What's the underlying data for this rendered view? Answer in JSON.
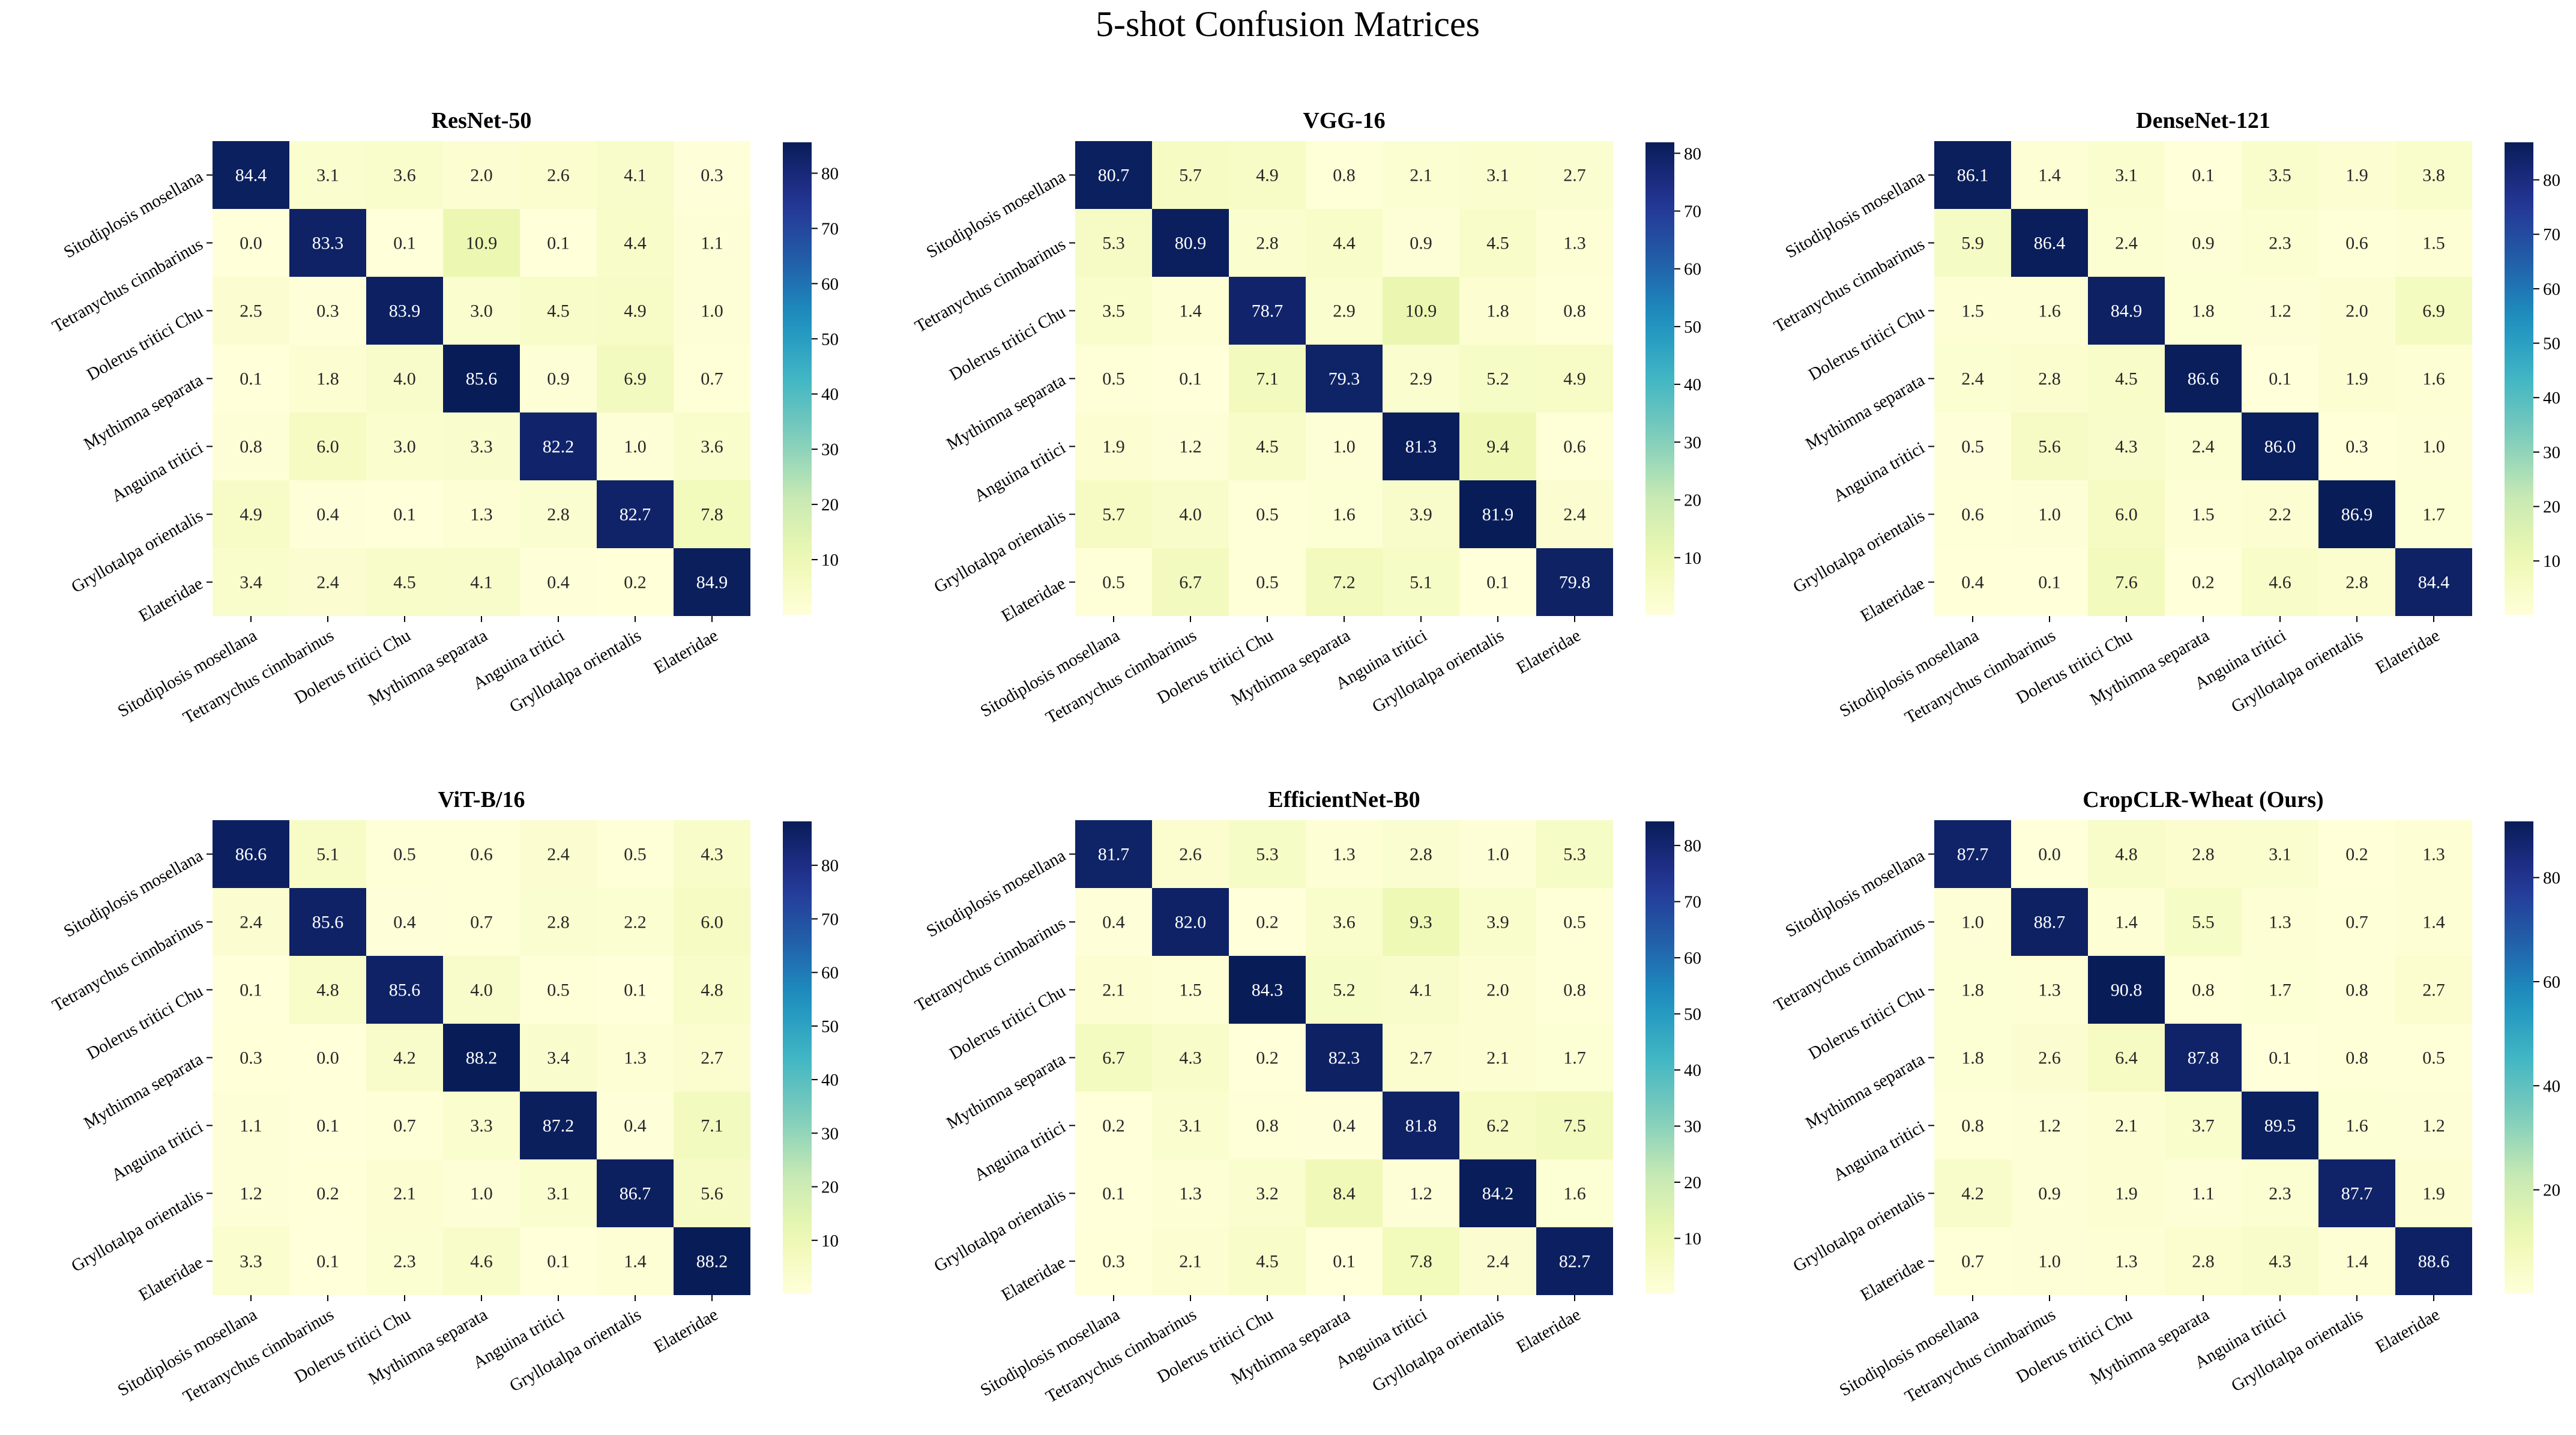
{
  "title": "5-shot Confusion Matrices",
  "chart_data": {
    "type": "heatmap",
    "layout": "2x3 grid",
    "colormap": "YlGnBu",
    "labels": [
      "Sitodiplosis mosellana",
      "Tetranychus cinnbarinus",
      "Dolerus tritici Chu",
      "Mythimna separata",
      "Anguina tritici",
      "Gryllotalpa orientalis",
      "Elateridae"
    ],
    "panels": [
      {
        "title": "ResNet-50",
        "vmin": 0.0,
        "vmax": 85.6,
        "colorbar_ticks": [
          10,
          20,
          30,
          40,
          50,
          60,
          70,
          80
        ],
        "matrix": [
          [
            84.4,
            3.1,
            3.6,
            2.0,
            2.6,
            4.1,
            0.3
          ],
          [
            0.0,
            83.3,
            0.1,
            10.9,
            0.1,
            4.4,
            1.1
          ],
          [
            2.5,
            0.3,
            83.9,
            3.0,
            4.5,
            4.9,
            1.0
          ],
          [
            0.1,
            1.8,
            4.0,
            85.6,
            0.9,
            6.9,
            0.7
          ],
          [
            0.8,
            6.0,
            3.0,
            3.3,
            82.2,
            1.0,
            3.6
          ],
          [
            4.9,
            0.4,
            0.1,
            1.3,
            2.8,
            82.7,
            7.8
          ],
          [
            3.4,
            2.4,
            4.5,
            4.1,
            0.4,
            0.2,
            84.9
          ]
        ]
      },
      {
        "title": "VGG-16",
        "vmin": 0.1,
        "vmax": 81.9,
        "colorbar_ticks": [
          10,
          20,
          30,
          40,
          50,
          60,
          70,
          80
        ],
        "matrix": [
          [
            80.7,
            5.7,
            4.9,
            0.8,
            2.1,
            3.1,
            2.7
          ],
          [
            5.3,
            80.9,
            2.8,
            4.4,
            0.9,
            4.5,
            1.3
          ],
          [
            3.5,
            1.4,
            78.7,
            2.9,
            10.9,
            1.8,
            0.8
          ],
          [
            0.5,
            0.1,
            7.1,
            79.3,
            2.9,
            5.2,
            4.9
          ],
          [
            1.9,
            1.2,
            4.5,
            1.0,
            81.3,
            9.4,
            0.6
          ],
          [
            5.7,
            4.0,
            0.5,
            1.6,
            3.9,
            81.9,
            2.4
          ],
          [
            0.5,
            6.7,
            0.5,
            7.2,
            5.1,
            0.1,
            79.8
          ]
        ]
      },
      {
        "title": "DenseNet-121",
        "vmin": 0.1,
        "vmax": 86.9,
        "colorbar_ticks": [
          10,
          20,
          30,
          40,
          50,
          60,
          70,
          80
        ],
        "matrix": [
          [
            86.1,
            1.4,
            3.1,
            0.1,
            3.5,
            1.9,
            3.8
          ],
          [
            5.9,
            86.4,
            2.4,
            0.9,
            2.3,
            0.6,
            1.5
          ],
          [
            1.5,
            1.6,
            84.9,
            1.8,
            1.2,
            2.0,
            6.9
          ],
          [
            2.4,
            2.8,
            4.5,
            86.6,
            0.1,
            1.9,
            1.6
          ],
          [
            0.5,
            5.6,
            4.3,
            2.4,
            86.0,
            0.3,
            1.0
          ],
          [
            0.6,
            1.0,
            6.0,
            1.5,
            2.2,
            86.9,
            1.7
          ],
          [
            0.4,
            0.1,
            7.6,
            0.2,
            4.6,
            2.8,
            84.4
          ]
        ]
      },
      {
        "title": "ViT-B/16",
        "vmin": 0.0,
        "vmax": 88.2,
        "colorbar_ticks": [
          10,
          20,
          30,
          40,
          50,
          60,
          70,
          80
        ],
        "matrix": [
          [
            86.6,
            5.1,
            0.5,
            0.6,
            2.4,
            0.5,
            4.3
          ],
          [
            2.4,
            85.6,
            0.4,
            0.7,
            2.8,
            2.2,
            6.0
          ],
          [
            0.1,
            4.8,
            85.6,
            4.0,
            0.5,
            0.1,
            4.8
          ],
          [
            0.3,
            0.0,
            4.2,
            88.2,
            3.4,
            1.3,
            2.7
          ],
          [
            1.1,
            0.1,
            0.7,
            3.3,
            87.2,
            0.4,
            7.1
          ],
          [
            1.2,
            0.2,
            2.1,
            1.0,
            3.1,
            86.7,
            5.6
          ],
          [
            3.3,
            0.1,
            2.3,
            4.6,
            0.1,
            1.4,
            88.2
          ]
        ]
      },
      {
        "title": "EfficientNet-B0",
        "vmin": 0.1,
        "vmax": 84.3,
        "colorbar_ticks": [
          10,
          20,
          30,
          40,
          50,
          60,
          70,
          80
        ],
        "matrix": [
          [
            81.7,
            2.6,
            5.3,
            1.3,
            2.8,
            1.0,
            5.3
          ],
          [
            0.4,
            82.0,
            0.2,
            3.6,
            9.3,
            3.9,
            0.5
          ],
          [
            2.1,
            1.5,
            84.3,
            5.2,
            4.1,
            2.0,
            0.8
          ],
          [
            6.7,
            4.3,
            0.2,
            82.3,
            2.7,
            2.1,
            1.7
          ],
          [
            0.2,
            3.1,
            0.8,
            0.4,
            81.8,
            6.2,
            7.5
          ],
          [
            0.1,
            1.3,
            3.2,
            8.4,
            1.2,
            84.2,
            1.6
          ],
          [
            0.3,
            2.1,
            4.5,
            0.1,
            7.8,
            2.4,
            82.7
          ]
        ]
      },
      {
        "title": "CropCLR-Wheat (Ours)",
        "vmin": 0.0,
        "vmax": 90.8,
        "colorbar_ticks": [
          20,
          40,
          60,
          80
        ],
        "matrix": [
          [
            87.7,
            0.0,
            4.8,
            2.8,
            3.1,
            0.2,
            1.3
          ],
          [
            1.0,
            88.7,
            1.4,
            5.5,
            1.3,
            0.7,
            1.4
          ],
          [
            1.8,
            1.3,
            90.8,
            0.8,
            1.7,
            0.8,
            2.7
          ],
          [
            1.8,
            2.6,
            6.4,
            87.8,
            0.1,
            0.8,
            0.5
          ],
          [
            0.8,
            1.2,
            2.1,
            3.7,
            89.5,
            1.6,
            1.2
          ],
          [
            4.2,
            0.9,
            1.9,
            1.1,
            2.3,
            87.7,
            1.9
          ],
          [
            0.7,
            1.0,
            1.3,
            2.8,
            4.3,
            1.4,
            88.6
          ]
        ]
      }
    ]
  }
}
